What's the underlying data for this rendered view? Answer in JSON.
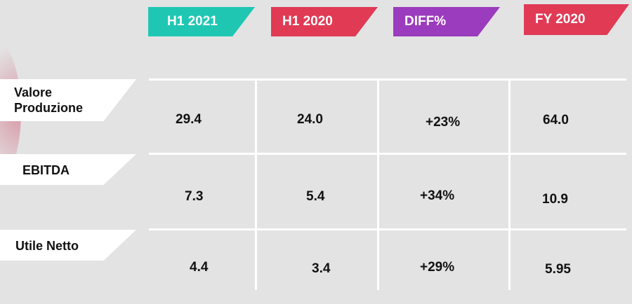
{
  "headers": {
    "h1_2021": "H1 2021",
    "h1_2020": "H1 2020",
    "diff": "DIFF%",
    "fy_2020": "FY 2020"
  },
  "header_colors": {
    "h1_2021": "#1fc7b3",
    "h1_2020": "#e03a55",
    "diff": "#9b3bbd",
    "fy_2020": "#e03a55"
  },
  "rows": [
    {
      "label_line1": "Valore",
      "label_line2": "Produzione",
      "h1_2021": "29.4",
      "h1_2020": "24.0",
      "diff": "+23%",
      "fy_2020": "64.0"
    },
    {
      "label": "EBITDA",
      "h1_2021": "7.3",
      "h1_2020": "5.4",
      "diff": "+34%",
      "fy_2020": "10.9"
    },
    {
      "label": "Utile Netto",
      "h1_2021": "4.4",
      "h1_2020": "3.4",
      "diff": "+29%",
      "fy_2020": "5.95"
    }
  ]
}
